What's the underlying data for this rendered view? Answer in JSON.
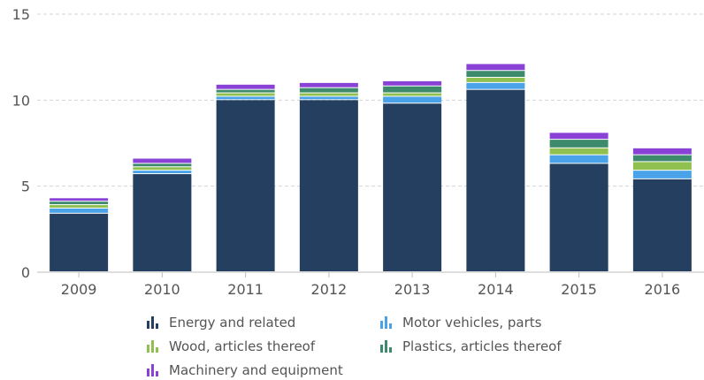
{
  "chart_data": {
    "type": "bar",
    "stacked": true,
    "categories": [
      "2009",
      "2010",
      "2011",
      "2012",
      "2013",
      "2014",
      "2015",
      "2016"
    ],
    "series": [
      {
        "name": "Energy and related",
        "color": "#243f5f",
        "values": [
          3.4,
          5.7,
          10.0,
          10.0,
          9.8,
          10.6,
          6.3,
          5.4
        ]
      },
      {
        "name": "Motor vehicles, parts",
        "color": "#4aa3e8",
        "values": [
          0.3,
          0.2,
          0.2,
          0.2,
          0.4,
          0.4,
          0.5,
          0.5
        ]
      },
      {
        "name": "Wood, articles thereof",
        "color": "#90c050",
        "values": [
          0.2,
          0.2,
          0.2,
          0.2,
          0.2,
          0.3,
          0.4,
          0.5
        ]
      },
      {
        "name": "Plastics, articles thereof",
        "color": "#3d8a6d",
        "values": [
          0.2,
          0.2,
          0.2,
          0.3,
          0.4,
          0.4,
          0.5,
          0.4
        ]
      },
      {
        "name": "Machinery and equipment",
        "color": "#8a42d6",
        "values": [
          0.2,
          0.3,
          0.3,
          0.3,
          0.3,
          0.4,
          0.4,
          0.4
        ]
      }
    ],
    "yticks": [
      "0",
      "5",
      "10",
      "15"
    ],
    "ylim": [
      0,
      15
    ],
    "grid": true,
    "legend_position": "bottom"
  }
}
